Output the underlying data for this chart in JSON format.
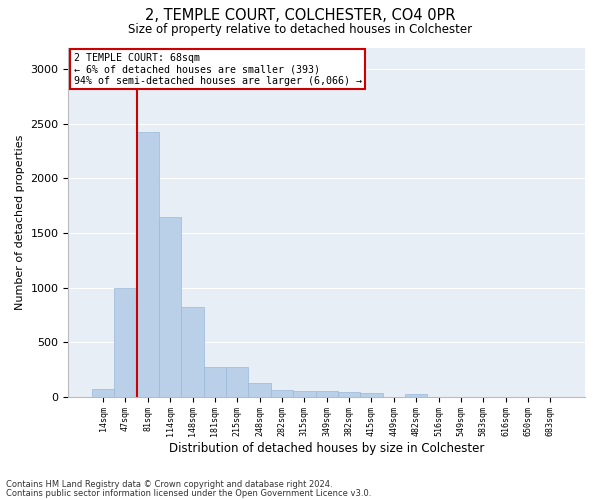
{
  "title1": "2, TEMPLE COURT, COLCHESTER, CO4 0PR",
  "title2": "Size of property relative to detached houses in Colchester",
  "xlabel": "Distribution of detached houses by size in Colchester",
  "ylabel": "Number of detached properties",
  "footnote1": "Contains HM Land Registry data © Crown copyright and database right 2024.",
  "footnote2": "Contains public sector information licensed under the Open Government Licence v3.0.",
  "annotation_title": "2 TEMPLE COURT: 68sqm",
  "annotation_line1": "← 6% of detached houses are smaller (393)",
  "annotation_line2": "94% of semi-detached houses are larger (6,066) →",
  "bar_color": "#bad0e8",
  "bar_edge_color": "#9ab8d8",
  "red_line_color": "#cc0000",
  "annotation_box_color": "#ffffff",
  "annotation_box_edge": "#cc0000",
  "background_color": "#e8eef6",
  "categories": [
    "14sqm",
    "47sqm",
    "81sqm",
    "114sqm",
    "148sqm",
    "181sqm",
    "215sqm",
    "248sqm",
    "282sqm",
    "315sqm",
    "349sqm",
    "382sqm",
    "415sqm",
    "449sqm",
    "482sqm",
    "516sqm",
    "549sqm",
    "583sqm",
    "616sqm",
    "650sqm",
    "683sqm"
  ],
  "values": [
    70,
    1000,
    2430,
    1650,
    820,
    275,
    270,
    130,
    65,
    55,
    50,
    45,
    30,
    0,
    25,
    0,
    0,
    0,
    0,
    0,
    0
  ],
  "red_line_x": 1.5,
  "ylim": [
    0,
    3200
  ],
  "yticks": [
    0,
    500,
    1000,
    1500,
    2000,
    2500,
    3000
  ]
}
